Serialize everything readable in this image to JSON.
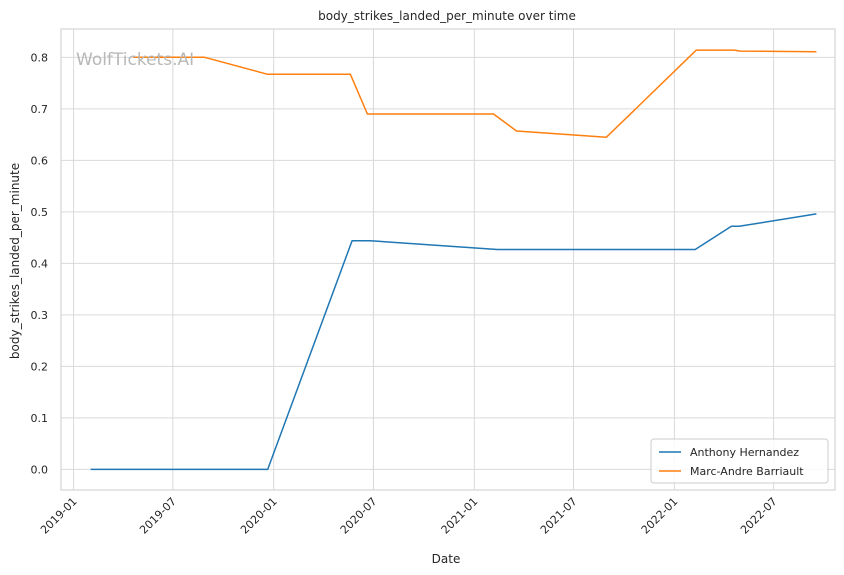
{
  "chart_data": {
    "type": "line",
    "title": "body_strikes_landed_per_minute over time",
    "xlabel": "Date",
    "ylabel": "body_strikes_landed_per_minute",
    "watermark": "WolfTickets.AI",
    "x_ticks": [
      "2019-01",
      "2019-07",
      "2020-01",
      "2020-07",
      "2021-01",
      "2021-07",
      "2022-01",
      "2022-07"
    ],
    "y_ticks": [
      0.0,
      0.1,
      0.2,
      0.3,
      0.4,
      0.5,
      0.6,
      0.7,
      0.8
    ],
    "y_tick_labels": [
      "0.0",
      "0.1",
      "0.2",
      "0.3",
      "0.4",
      "0.5",
      "0.6",
      "0.7",
      "0.8"
    ],
    "xlim": [
      "2018-12-09",
      "2022-10-21"
    ],
    "ylim": [
      -0.04,
      0.855
    ],
    "grid": true,
    "legend_position": "bottom-right",
    "series": [
      {
        "name": "Anthony Hernandez",
        "color": "#1f77b4",
        "points": [
          {
            "x": "2019-02-01",
            "y": 0.0
          },
          {
            "x": "2019-12-21",
            "y": 0.0
          },
          {
            "x": "2020-05-23",
            "y": 0.444
          },
          {
            "x": "2020-06-25",
            "y": 0.444
          },
          {
            "x": "2021-02-12",
            "y": 0.427
          },
          {
            "x": "2022-02-08",
            "y": 0.427
          },
          {
            "x": "2022-04-15",
            "y": 0.472
          },
          {
            "x": "2022-04-29",
            "y": 0.472
          },
          {
            "x": "2022-09-17",
            "y": 0.496
          }
        ]
      },
      {
        "name": "Marc-Andre Barriault",
        "color": "#ff7f0e",
        "points": [
          {
            "x": "2019-04-20",
            "y": 0.8
          },
          {
            "x": "2019-08-28",
            "y": 0.8
          },
          {
            "x": "2019-12-21",
            "y": 0.767
          },
          {
            "x": "2020-05-20",
            "y": 0.767
          },
          {
            "x": "2020-06-20",
            "y": 0.69
          },
          {
            "x": "2021-02-05",
            "y": 0.69
          },
          {
            "x": "2021-03-19",
            "y": 0.657
          },
          {
            "x": "2021-08-30",
            "y": 0.645
          },
          {
            "x": "2022-02-10",
            "y": 0.814
          },
          {
            "x": "2022-04-20",
            "y": 0.814
          },
          {
            "x": "2022-05-01",
            "y": 0.812
          },
          {
            "x": "2022-09-17",
            "y": 0.811
          }
        ]
      }
    ]
  }
}
